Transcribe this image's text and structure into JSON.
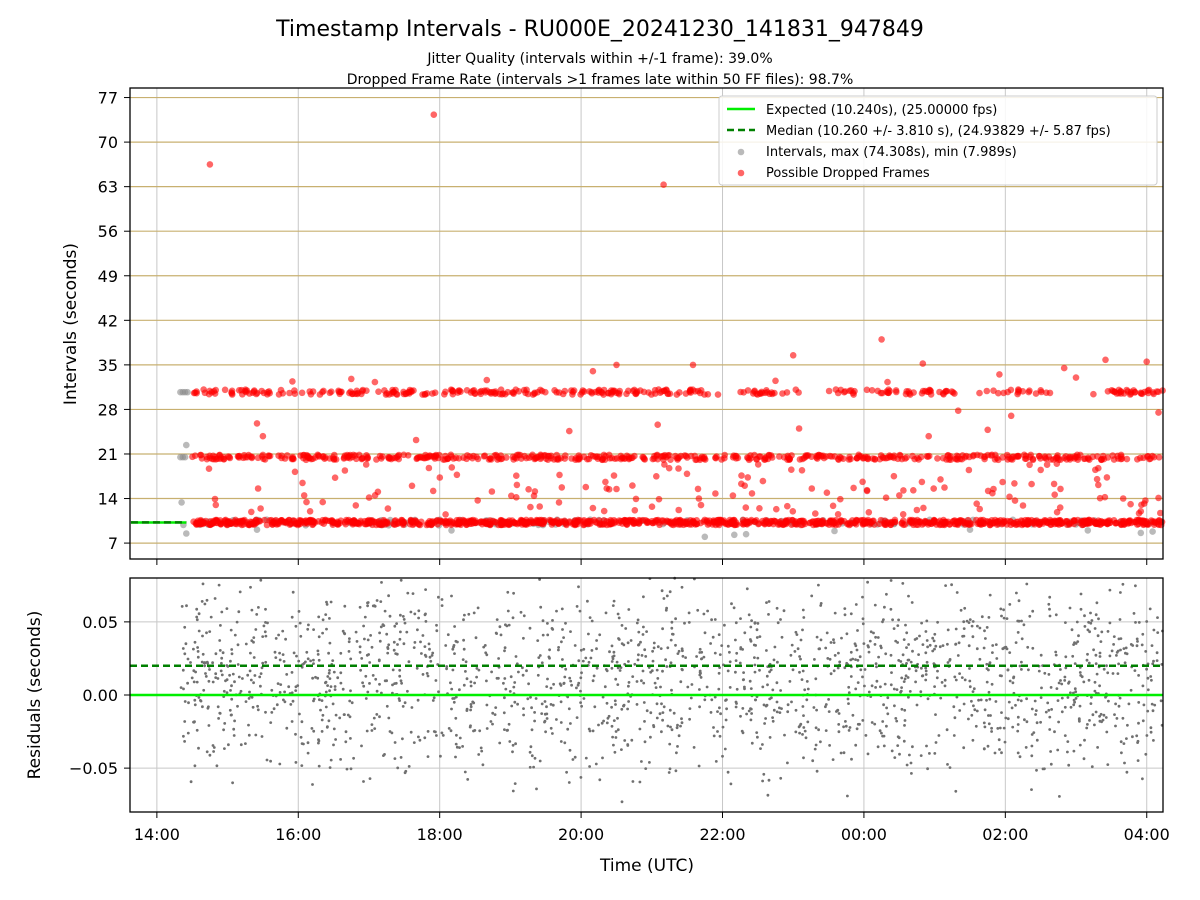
{
  "title": "Timestamp Intervals - RU000E_20241230_141831_947849",
  "subtitle_1": "Jitter Quality (intervals within +/-1 frame): 39.0%",
  "subtitle_2": "Dropped Frame Rate (intervals >1 frames late within 50 FF files): 98.7%",
  "colors": {
    "expected": "#00ee00",
    "median": "#008000",
    "intervals": "#8c8c8c",
    "dropped": "#ff0000",
    "hgrid_top": "#c8b070",
    "grid": "#c8c8c8"
  },
  "chart_data": [
    {
      "type": "scatter",
      "ylabel": "Intervals (seconds)",
      "yticks": [
        "7",
        "14",
        "21",
        "28",
        "35",
        "42",
        "49",
        "56",
        "63",
        "70",
        "77"
      ],
      "ylim": [
        4.5,
        78.5
      ],
      "xlim_hours": [
        13.62,
        28.23
      ],
      "grid": "horizontal lines at y ticks, vertical lines at x ticks",
      "legend_position": "top-right",
      "legend": [
        {
          "key": "expected",
          "label": "Expected (10.240s), (25.00000 fps)"
        },
        {
          "key": "median",
          "label": "Median (10.260 +/- 3.810 s), (24.93829 +/- 5.87 fps)"
        },
        {
          "key": "intervals",
          "label": "Intervals, max (74.308s), min (7.989s)"
        },
        {
          "key": "dropped",
          "label": "Possible Dropped Frames"
        }
      ],
      "series": [
        {
          "name": "Expected (10.240s), (25.00000 fps)",
          "style": "solid line",
          "y": 10.24,
          "x_range": [
            "13:38",
            "14:25"
          ]
        },
        {
          "name": "Median (10.260 +/- 3.810 s), (24.93829 +/- 5.87 fps)",
          "style": "dashed line",
          "y": 10.26,
          "x_range": [
            "13:38",
            "14:25"
          ]
        },
        {
          "name": "Intervals, max (74.308s), min (7.989s)",
          "style": "gray points",
          "max": 74.308,
          "min": 7.989,
          "bands": [
            {
              "y": 10.24,
              "x_range": [
                "14:20",
                "04:14"
              ]
            }
          ],
          "points": [
            {
              "x": "14:20",
              "y": 30.7
            },
            {
              "x": "14:22",
              "y": 30.7
            },
            {
              "x": "14:24",
              "y": 30.7
            },
            {
              "x": "14:26",
              "y": 30.7
            },
            {
              "x": "14:20",
              "y": 20.5
            },
            {
              "x": "14:22",
              "y": 20.5
            },
            {
              "x": "14:24",
              "y": 20.5
            },
            {
              "x": "14:25",
              "y": 22.4
            },
            {
              "x": "14:21",
              "y": 13.4
            },
            {
              "x": "14:25",
              "y": 8.5
            },
            {
              "x": "15:25",
              "y": 9.1
            },
            {
              "x": "18:10",
              "y": 9.0
            },
            {
              "x": "21:45",
              "y": 7.99
            },
            {
              "x": "22:10",
              "y": 8.3
            },
            {
              "x": "22:20",
              "y": 8.4
            },
            {
              "x": "23:35",
              "y": 8.9
            },
            {
              "x": "01:30",
              "y": 9.1
            },
            {
              "x": "03:10",
              "y": 9.0
            },
            {
              "x": "03:55",
              "y": 8.6
            },
            {
              "x": "04:05",
              "y": 8.8
            }
          ]
        },
        {
          "name": "Possible Dropped Frames",
          "style": "red points",
          "bands": [
            {
              "y": 10.24,
              "x_range": [
                "14:30",
                "04:14"
              ]
            },
            {
              "y": 20.48,
              "x_range": [
                "14:30",
                "04:14"
              ]
            },
            {
              "y": 30.72,
              "x_range": [
                "14:30",
                "04:14"
              ]
            }
          ],
          "points": [
            {
              "x": "14:45",
              "y": 66.5
            },
            {
              "x": "17:55",
              "y": 74.3
            },
            {
              "x": "21:10",
              "y": 63.3
            },
            {
              "x": "00:15",
              "y": 39.0
            },
            {
              "x": "23:00",
              "y": 36.5
            },
            {
              "x": "03:25",
              "y": 35.8
            },
            {
              "x": "04:00",
              "y": 35.5
            },
            {
              "x": "20:30",
              "y": 35.0
            },
            {
              "x": "21:35",
              "y": 35.0
            },
            {
              "x": "00:50",
              "y": 35.2
            },
            {
              "x": "02:50",
              "y": 34.5
            },
            {
              "x": "20:10",
              "y": 34.0
            },
            {
              "x": "01:55",
              "y": 33.5
            },
            {
              "x": "16:45",
              "y": 32.8
            },
            {
              "x": "17:05",
              "y": 32.3
            },
            {
              "x": "18:40",
              "y": 32.6
            },
            {
              "x": "15:55",
              "y": 32.4
            },
            {
              "x": "22:45",
              "y": 32.5
            },
            {
              "x": "00:20",
              "y": 32.3
            },
            {
              "x": "03:00",
              "y": 33.0
            },
            {
              "x": "15:25",
              "y": 25.8
            },
            {
              "x": "15:30",
              "y": 23.8
            },
            {
              "x": "17:40",
              "y": 23.2
            },
            {
              "x": "19:50",
              "y": 24.6
            },
            {
              "x": "21:05",
              "y": 25.6
            },
            {
              "x": "23:05",
              "y": 25.0
            },
            {
              "x": "01:45",
              "y": 24.8
            },
            {
              "x": "04:10",
              "y": 27.5
            },
            {
              "x": "00:55",
              "y": 23.8
            },
            {
              "x": "01:20",
              "y": 27.8
            },
            {
              "x": "02:05",
              "y": 27.0
            },
            {
              "x": "16:05",
              "y": 14.5
            },
            {
              "x": "19:05",
              "y": 14.2
            },
            {
              "x": "20:30",
              "y": 15.5
            },
            {
              "x": "21:40",
              "y": 14.0
            },
            {
              "x": "22:25",
              "y": 14.8
            },
            {
              "x": "23:40",
              "y": 13.9
            },
            {
              "x": "00:30",
              "y": 14.5
            },
            {
              "x": "01:05",
              "y": 17.0
            },
            {
              "x": "01:50",
              "y": 15.5
            },
            {
              "x": "02:30",
              "y": 18.5
            },
            {
              "x": "03:40",
              "y": 14.0
            },
            {
              "x": "16:10",
              "y": 12.0
            },
            {
              "x": "18:05",
              "y": 11.5
            },
            {
              "x": "20:10",
              "y": 12.5
            },
            {
              "x": "22:55",
              "y": 12.8
            },
            {
              "x": "00:45",
              "y": 12.2
            },
            {
              "x": "02:15",
              "y": 12.9
            },
            {
              "x": "03:55",
              "y": 12.0
            },
            {
              "x": "14:50",
              "y": 13.0
            }
          ]
        }
      ]
    },
    {
      "type": "scatter",
      "ylabel": "Residuals (seconds)",
      "xlabel": "Time (UTC)",
      "xticks": [
        "14:00",
        "16:00",
        "18:00",
        "20:00",
        "22:00",
        "00:00",
        "02:00",
        "04:00"
      ],
      "yticks": [
        "−0.05",
        "0.00",
        "0.05"
      ],
      "ylim": [
        -0.08,
        0.08
      ],
      "xlim_hours": [
        13.62,
        28.23
      ],
      "grid": "on",
      "series": [
        {
          "name": "Expected (10.240s), (25.00000 fps)",
          "style": "solid line",
          "y": 0.0
        },
        {
          "name": "Median (10.260 +/- 3.810 s), (24.93829 +/- 5.87 fps)",
          "style": "dashed line",
          "y": 0.02
        },
        {
          "name": "Intervals, max (74.308s), min (7.989s)",
          "style": "gray points",
          "distribution": "spread roughly uniformly between -0.08 and 0.08",
          "x_range": [
            "14:20",
            "04:14"
          ]
        }
      ]
    }
  ]
}
